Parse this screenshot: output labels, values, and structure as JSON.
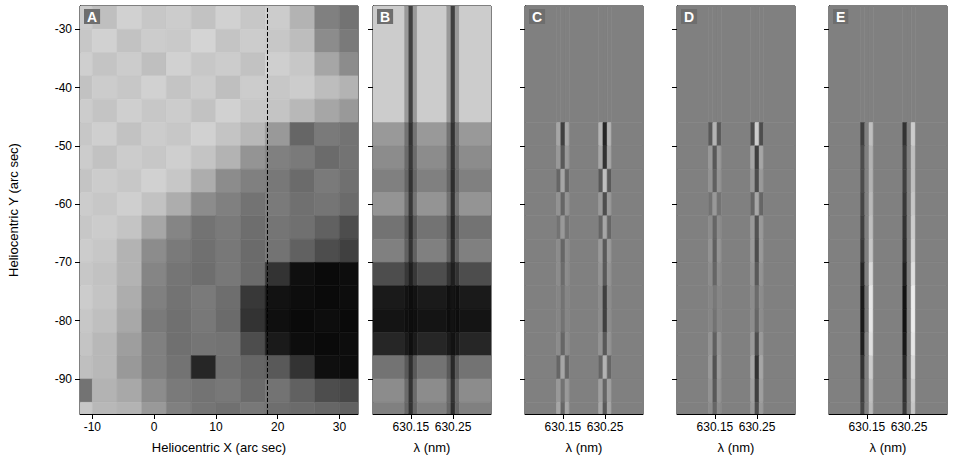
{
  "chart_data": [
    {
      "type": "heatmap",
      "title": "A",
      "x_label": "Heliocentric X (arc sec)",
      "y_label": "Heliocentric Y (arc sec)",
      "xlim": [
        -12,
        33
      ],
      "ylim": [
        -96,
        -26
      ],
      "xticks": [
        -10,
        0,
        10,
        20,
        30
      ],
      "yticks": [
        -30,
        -40,
        -50,
        -60,
        -70,
        -80,
        -90
      ],
      "slit_x": 18.3,
      "line_style": "dashed",
      "value_range": [
        0,
        1
      ],
      "x_edges": [
        -14,
        -10,
        -6,
        -2,
        2,
        6,
        10,
        14,
        18,
        22,
        26,
        30,
        34
      ],
      "y_edges": [
        -26,
        -30,
        -34,
        -38,
        -42,
        -46,
        -50,
        -54,
        -58,
        -62,
        -66,
        -70,
        -74,
        -78,
        -82,
        -86,
        -90,
        -94,
        -98
      ],
      "cells": [
        [
          0.8,
          0.75,
          0.82,
          0.78,
          0.8,
          0.76,
          0.82,
          0.78,
          0.8,
          0.7,
          0.5,
          0.45
        ],
        [
          0.78,
          0.82,
          0.76,
          0.8,
          0.79,
          0.83,
          0.77,
          0.8,
          0.78,
          0.74,
          0.55,
          0.48
        ],
        [
          0.81,
          0.77,
          0.8,
          0.75,
          0.82,
          0.78,
          0.8,
          0.76,
          0.81,
          0.78,
          0.65,
          0.55
        ],
        [
          0.76,
          0.8,
          0.78,
          0.82,
          0.77,
          0.8,
          0.75,
          0.8,
          0.78,
          0.8,
          0.74,
          0.7
        ],
        [
          0.8,
          0.77,
          0.81,
          0.78,
          0.8,
          0.76,
          0.82,
          0.78,
          0.77,
          0.72,
          0.65,
          0.6
        ],
        [
          0.78,
          0.81,
          0.76,
          0.8,
          0.78,
          0.82,
          0.77,
          0.72,
          0.6,
          0.4,
          0.48,
          0.45
        ],
        [
          0.8,
          0.76,
          0.8,
          0.78,
          0.81,
          0.77,
          0.7,
          0.58,
          0.5,
          0.48,
          0.42,
          0.45
        ],
        [
          0.77,
          0.8,
          0.78,
          0.82,
          0.78,
          0.68,
          0.55,
          0.5,
          0.47,
          0.42,
          0.48,
          0.44
        ],
        [
          0.8,
          0.78,
          0.81,
          0.76,
          0.68,
          0.55,
          0.5,
          0.45,
          0.48,
          0.44,
          0.46,
          0.42
        ],
        [
          0.78,
          0.8,
          0.77,
          0.65,
          0.52,
          0.45,
          0.48,
          0.43,
          0.46,
          0.44,
          0.38,
          0.3
        ],
        [
          0.8,
          0.78,
          0.7,
          0.55,
          0.48,
          0.44,
          0.47,
          0.42,
          0.45,
          0.38,
          0.3,
          0.25
        ],
        [
          0.78,
          0.76,
          0.7,
          0.52,
          0.46,
          0.43,
          0.47,
          0.42,
          0.2,
          0.06,
          0.04,
          0.05
        ],
        [
          0.8,
          0.77,
          0.68,
          0.5,
          0.45,
          0.48,
          0.43,
          0.22,
          0.07,
          0.05,
          0.04,
          0.05
        ],
        [
          0.78,
          0.75,
          0.66,
          0.48,
          0.44,
          0.47,
          0.42,
          0.2,
          0.06,
          0.04,
          0.05,
          0.04
        ],
        [
          0.77,
          0.72,
          0.62,
          0.5,
          0.44,
          0.46,
          0.45,
          0.3,
          0.1,
          0.05,
          0.04,
          0.05
        ],
        [
          0.75,
          0.72,
          0.6,
          0.5,
          0.45,
          0.15,
          0.44,
          0.4,
          0.35,
          0.2,
          0.06,
          0.05
        ],
        [
          0.45,
          0.7,
          0.66,
          0.55,
          0.48,
          0.45,
          0.47,
          0.42,
          0.45,
          0.38,
          0.3,
          0.28
        ],
        [
          0.78,
          0.72,
          0.7,
          0.6,
          0.5,
          0.46,
          0.44,
          0.47,
          0.43,
          0.42,
          0.4,
          0.38
        ]
      ]
    },
    {
      "type": "heatmap",
      "title": "B",
      "x_label": "λ (nm)",
      "xlim": [
        630.06,
        630.34
      ],
      "ylim": [
        -96,
        -26
      ],
      "xticks": [
        630.15,
        630.25
      ],
      "yticks": [
        -30,
        -40,
        -50,
        -60,
        -70,
        -80,
        -90
      ],
      "tick_labels": "x",
      "value_range": [
        0,
        1
      ],
      "x_edges": [
        630.06,
        630.135,
        630.145,
        630.155,
        630.165,
        630.235,
        630.245,
        630.255,
        630.265,
        630.34
      ],
      "y_edges": [
        -26,
        -46,
        -50,
        -54,
        -58,
        -62,
        -66,
        -70,
        -74,
        -78,
        -82,
        -86,
        -90,
        -94,
        -98
      ],
      "cells": [
        [
          0.8,
          0.6,
          0.25,
          0.6,
          0.8,
          0.6,
          0.25,
          0.6,
          0.8
        ],
        [
          0.6,
          0.45,
          0.2,
          0.45,
          0.6,
          0.45,
          0.2,
          0.45,
          0.6
        ],
        [
          0.55,
          0.42,
          0.22,
          0.42,
          0.55,
          0.42,
          0.2,
          0.42,
          0.55
        ],
        [
          0.5,
          0.4,
          0.2,
          0.4,
          0.5,
          0.4,
          0.18,
          0.4,
          0.5
        ],
        [
          0.58,
          0.45,
          0.22,
          0.45,
          0.58,
          0.45,
          0.2,
          0.45,
          0.58
        ],
        [
          0.45,
          0.35,
          0.18,
          0.35,
          0.45,
          0.35,
          0.16,
          0.35,
          0.45
        ],
        [
          0.5,
          0.38,
          0.2,
          0.38,
          0.5,
          0.38,
          0.18,
          0.38,
          0.5
        ],
        [
          0.3,
          0.22,
          0.12,
          0.22,
          0.3,
          0.2,
          0.12,
          0.2,
          0.3
        ],
        [
          0.1,
          0.07,
          0.05,
          0.07,
          0.1,
          0.06,
          0.08,
          0.06,
          0.1
        ],
        [
          0.08,
          0.06,
          0.05,
          0.06,
          0.08,
          0.05,
          0.07,
          0.05,
          0.08
        ],
        [
          0.15,
          0.1,
          0.06,
          0.1,
          0.15,
          0.1,
          0.07,
          0.1,
          0.15
        ],
        [
          0.45,
          0.35,
          0.18,
          0.35,
          0.45,
          0.35,
          0.16,
          0.35,
          0.45
        ],
        [
          0.55,
          0.42,
          0.2,
          0.42,
          0.55,
          0.42,
          0.2,
          0.42,
          0.55
        ],
        [
          0.5,
          0.4,
          0.2,
          0.4,
          0.5,
          0.4,
          0.18,
          0.4,
          0.5
        ]
      ]
    },
    {
      "type": "heatmap",
      "title": "C",
      "x_label": "λ (nm)",
      "xlim": [
        630.06,
        630.34
      ],
      "ylim": [
        -96,
        -26
      ],
      "xticks": [
        630.15,
        630.25
      ],
      "yticks": [
        -30,
        -40,
        -50,
        -60,
        -70,
        -80,
        -90
      ],
      "tick_labels": "x",
      "value_range": [
        -1,
        1
      ],
      "x_edges": [
        630.06,
        630.135,
        630.145,
        630.155,
        630.165,
        630.235,
        630.245,
        630.255,
        630.265,
        630.34
      ],
      "y_edges": [
        -26,
        -46,
        -50,
        -54,
        -58,
        -62,
        -66,
        -70,
        -74,
        -78,
        -82,
        -86,
        -90,
        -94,
        -98
      ],
      "cells": [
        [
          0,
          0,
          0,
          0,
          0,
          0,
          0,
          0,
          0
        ],
        [
          0,
          0.3,
          -0.5,
          0.3,
          0,
          0.4,
          -0.7,
          0.4,
          0
        ],
        [
          0,
          0.2,
          -0.3,
          0.2,
          0,
          0.3,
          -0.6,
          0.3,
          0
        ],
        [
          0,
          -0.2,
          0.3,
          -0.2,
          0,
          -0.3,
          0.5,
          -0.3,
          0
        ],
        [
          0,
          0.15,
          -0.2,
          0.15,
          0,
          0.2,
          -0.4,
          0.2,
          0
        ],
        [
          0,
          -0.1,
          0.2,
          -0.1,
          0,
          -0.2,
          0.3,
          -0.2,
          0
        ],
        [
          0,
          0.1,
          -0.2,
          0.1,
          0,
          0.2,
          -0.3,
          0.2,
          0
        ],
        [
          0,
          0.1,
          -0.15,
          0.1,
          0,
          0.15,
          -0.3,
          0.15,
          0
        ],
        [
          0,
          0.05,
          -0.1,
          0.05,
          0,
          0.1,
          -0.5,
          0.1,
          0
        ],
        [
          0,
          0.05,
          -0.1,
          0.05,
          0,
          0.1,
          -0.5,
          0.1,
          0
        ],
        [
          0,
          0.1,
          -0.2,
          0.1,
          0,
          0.15,
          -0.3,
          0.15,
          0
        ],
        [
          0,
          -0.2,
          0.3,
          -0.2,
          0,
          -0.2,
          0.4,
          -0.2,
          0
        ],
        [
          0,
          0.2,
          -0.1,
          0.2,
          0,
          0.25,
          -0.2,
          0.25,
          0
        ],
        [
          0,
          0.3,
          -0.2,
          0.3,
          0,
          0.3,
          -0.3,
          0.3,
          0
        ]
      ]
    },
    {
      "type": "heatmap",
      "title": "D",
      "x_label": "λ (nm)",
      "xlim": [
        630.06,
        630.34
      ],
      "ylim": [
        -96,
        -26
      ],
      "xticks": [
        630.15,
        630.25
      ],
      "yticks": [
        -30,
        -40,
        -50,
        -60,
        -70,
        -80,
        -90
      ],
      "tick_labels": "x",
      "value_range": [
        -1,
        1
      ],
      "x_edges": [
        630.06,
        630.135,
        630.145,
        630.155,
        630.165,
        630.235,
        630.245,
        630.255,
        630.265,
        630.34
      ],
      "y_edges": [
        -26,
        -46,
        -50,
        -54,
        -58,
        -62,
        -66,
        -70,
        -74,
        -78,
        -82,
        -86,
        -90,
        -94,
        -98
      ],
      "cells": [
        [
          0,
          0,
          0,
          0,
          0,
          0,
          0,
          0,
          0
        ],
        [
          0,
          -0.3,
          0.4,
          -0.3,
          0,
          -0.4,
          0.6,
          -0.4,
          0
        ],
        [
          0,
          0.2,
          -0.3,
          0.2,
          0,
          0.3,
          -0.5,
          0.3,
          0
        ],
        [
          0,
          0.15,
          -0.25,
          0.15,
          0,
          0.2,
          -0.4,
          0.2,
          0
        ],
        [
          0,
          -0.1,
          0.2,
          -0.1,
          0,
          -0.2,
          0.3,
          -0.2,
          0
        ],
        [
          0,
          0.1,
          -0.2,
          0.1,
          0,
          0.2,
          -0.35,
          0.2,
          0
        ],
        [
          0,
          0.15,
          -0.25,
          0.15,
          0,
          0.2,
          -0.4,
          0.2,
          0
        ],
        [
          0,
          0.1,
          -0.2,
          0.1,
          0,
          0.15,
          -0.3,
          0.15,
          0
        ],
        [
          0,
          0.05,
          -0.05,
          0.05,
          0,
          0.1,
          -0.15,
          0.1,
          0
        ],
        [
          0,
          0.05,
          -0.1,
          0.05,
          0,
          0.1,
          -0.2,
          0.1,
          0
        ],
        [
          0,
          0.15,
          -0.25,
          0.15,
          0,
          0.2,
          -0.4,
          0.2,
          0
        ],
        [
          0,
          0.2,
          -0.35,
          0.2,
          0,
          0.3,
          -0.6,
          0.3,
          0
        ],
        [
          0,
          0.15,
          -0.3,
          0.15,
          0,
          0.25,
          -0.5,
          0.25,
          0
        ],
        [
          0,
          0.1,
          -0.2,
          0.1,
          0,
          0.2,
          -0.4,
          0.2,
          0
        ]
      ]
    },
    {
      "type": "heatmap",
      "title": "E",
      "x_label": "λ (nm)",
      "xlim": [
        630.06,
        630.34
      ],
      "ylim": [
        -96,
        -26
      ],
      "xticks": [
        630.15,
        630.25
      ],
      "yticks": [
        -30,
        -40,
        -50,
        -60,
        -70,
        -80,
        -90
      ],
      "tick_labels": "x",
      "value_range": [
        -1,
        1
      ],
      "x_edges": [
        630.06,
        630.135,
        630.145,
        630.155,
        630.165,
        630.235,
        630.245,
        630.255,
        630.265,
        630.34
      ],
      "y_edges": [
        -26,
        -46,
        -50,
        -54,
        -58,
        -62,
        -66,
        -70,
        -74,
        -78,
        -82,
        -86,
        -90,
        -94,
        -98
      ],
      "cells": [
        [
          0,
          0,
          0,
          0,
          0,
          0,
          0,
          0,
          0
        ],
        [
          0,
          -0.5,
          0,
          0.5,
          0,
          -0.6,
          0,
          0.6,
          0
        ],
        [
          0,
          -0.4,
          0,
          0.4,
          0,
          -0.5,
          0,
          0.5,
          0
        ],
        [
          0,
          -0.4,
          0,
          0.4,
          0,
          -0.5,
          0,
          0.5,
          0
        ],
        [
          0,
          -0.45,
          0,
          0.45,
          0,
          -0.55,
          0,
          0.55,
          0
        ],
        [
          0,
          -0.5,
          0,
          0.5,
          0,
          -0.6,
          0,
          0.6,
          0
        ],
        [
          0,
          -0.55,
          0,
          0.55,
          0,
          -0.65,
          0,
          0.65,
          0
        ],
        [
          0,
          -0.7,
          0,
          0.7,
          0,
          -0.75,
          0,
          0.75,
          0
        ],
        [
          0,
          -0.8,
          -0.1,
          0.8,
          0,
          -0.85,
          0,
          0.85,
          0
        ],
        [
          0,
          -0.8,
          -0.1,
          0.8,
          0,
          -0.85,
          0,
          0.85,
          0
        ],
        [
          0,
          -0.75,
          0,
          0.75,
          0,
          -0.8,
          0,
          0.8,
          0
        ],
        [
          0,
          -0.6,
          0,
          0.6,
          0,
          -0.7,
          0,
          0.7,
          0
        ],
        [
          0,
          -0.5,
          0,
          0.5,
          0,
          -0.6,
          0,
          0.6,
          0
        ],
        [
          0,
          -0.45,
          0,
          0.45,
          0,
          -0.55,
          0,
          0.55,
          0
        ]
      ]
    }
  ]
}
